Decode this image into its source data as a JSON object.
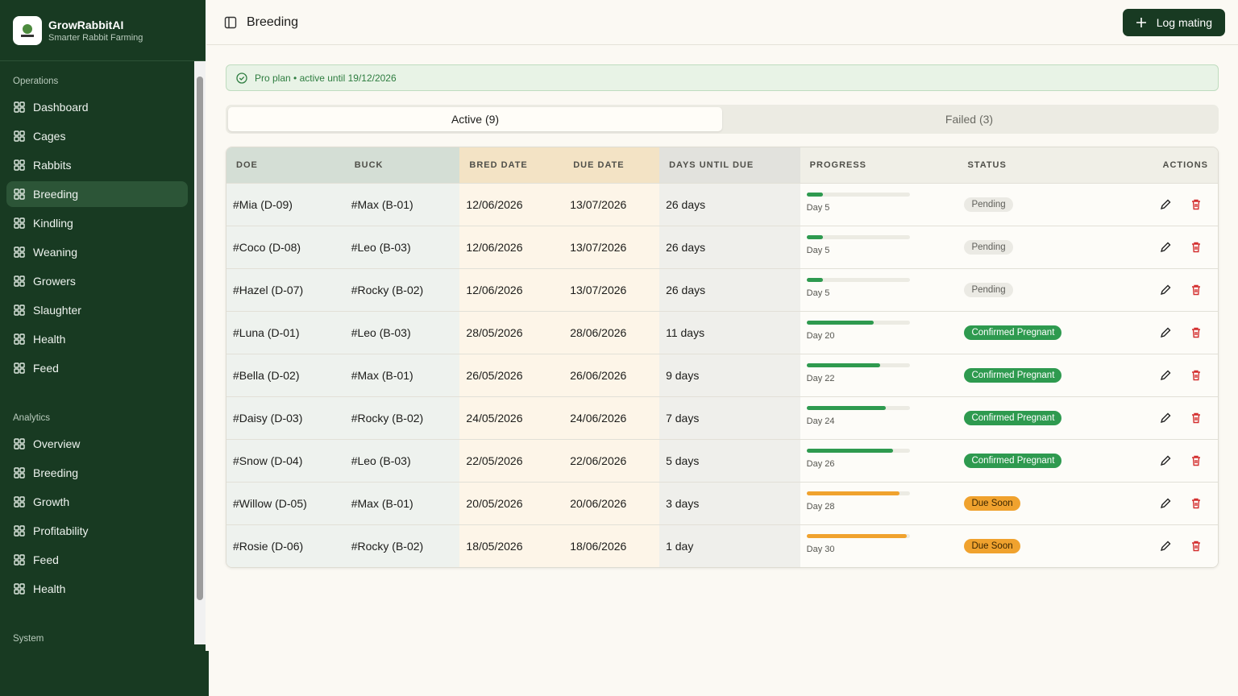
{
  "sidebar": {
    "brand": {
      "name": "GrowRabbitAI",
      "tagline": "Smarter Rabbit Farming"
    },
    "sections": [
      {
        "title": "Operations",
        "items": [
          {
            "label": "Dashboard"
          },
          {
            "label": "Cages"
          },
          {
            "label": "Rabbits"
          },
          {
            "label": "Breeding",
            "active": true
          },
          {
            "label": "Kindling"
          },
          {
            "label": "Weaning"
          },
          {
            "label": "Growers"
          },
          {
            "label": "Slaughter"
          },
          {
            "label": "Health"
          },
          {
            "label": "Feed"
          }
        ]
      },
      {
        "title": "Analytics",
        "items": [
          {
            "label": "Overview"
          },
          {
            "label": "Breeding"
          },
          {
            "label": "Growth"
          },
          {
            "label": "Profitability"
          },
          {
            "label": "Feed"
          },
          {
            "label": "Health"
          }
        ]
      },
      {
        "title": "System",
        "items": []
      }
    ]
  },
  "header": {
    "title": "Breeding",
    "button": "Log mating"
  },
  "plan_banner": "Pro plan • active until 19/12/2026",
  "tabs": [
    {
      "label": "Active (9)",
      "active": true
    },
    {
      "label": "Failed (3)"
    }
  ],
  "table": {
    "columns": [
      "DOE",
      "BUCK",
      "BRED DATE",
      "DUE DATE",
      "DAYS UNTIL DUE",
      "PROGRESS",
      "STATUS",
      "ACTIONS"
    ],
    "rows": [
      {
        "doe": "#Mia (D-09)",
        "buck": "#Max (B-01)",
        "bred": "12/06/2026",
        "due": "13/07/2026",
        "days_until": "26 days",
        "progress": 16,
        "progress_label": "Day 5",
        "status": "Pending",
        "bar_color": "#2e9a4f",
        "badge_bg": "#ebeae4",
        "badge_fg": "#5f5f5a"
      },
      {
        "doe": "#Coco (D-08)",
        "buck": "#Leo (B-03)",
        "bred": "12/06/2026",
        "due": "13/07/2026",
        "days_until": "26 days",
        "progress": 16,
        "progress_label": "Day 5",
        "status": "Pending",
        "bar_color": "#2e9a4f",
        "badge_bg": "#ebeae4",
        "badge_fg": "#5f5f5a"
      },
      {
        "doe": "#Hazel (D-07)",
        "buck": "#Rocky (B-02)",
        "bred": "12/06/2026",
        "due": "13/07/2026",
        "days_until": "26 days",
        "progress": 16,
        "progress_label": "Day 5",
        "status": "Pending",
        "bar_color": "#2e9a4f",
        "badge_bg": "#ebeae4",
        "badge_fg": "#5f5f5a"
      },
      {
        "doe": "#Luna (D-01)",
        "buck": "#Leo (B-03)",
        "bred": "28/05/2026",
        "due": "28/06/2026",
        "days_until": "11 days",
        "progress": 65,
        "progress_label": "Day 20",
        "status": "Confirmed Pregnant",
        "bar_color": "#2e9a4f",
        "badge_bg": "#2e9a4f",
        "badge_fg": "#ffffff"
      },
      {
        "doe": "#Bella (D-02)",
        "buck": "#Max (B-01)",
        "bred": "26/05/2026",
        "due": "26/06/2026",
        "days_until": "9 days",
        "progress": 71,
        "progress_label": "Day 22",
        "status": "Confirmed Pregnant",
        "bar_color": "#2e9a4f",
        "badge_bg": "#2e9a4f",
        "badge_fg": "#ffffff"
      },
      {
        "doe": "#Daisy (D-03)",
        "buck": "#Rocky (B-02)",
        "bred": "24/05/2026",
        "due": "24/06/2026",
        "days_until": "7 days",
        "progress": 77,
        "progress_label": "Day 24",
        "status": "Confirmed Pregnant",
        "bar_color": "#2e9a4f",
        "badge_bg": "#2e9a4f",
        "badge_fg": "#ffffff"
      },
      {
        "doe": "#Snow (D-04)",
        "buck": "#Leo (B-03)",
        "bred": "22/05/2026",
        "due": "22/06/2026",
        "days_until": "5 days",
        "progress": 84,
        "progress_label": "Day 26",
        "status": "Confirmed Pregnant",
        "bar_color": "#2e9a4f",
        "badge_bg": "#2e9a4f",
        "badge_fg": "#ffffff"
      },
      {
        "doe": "#Willow (D-05)",
        "buck": "#Max (B-01)",
        "bred": "20/05/2026",
        "due": "20/06/2026",
        "days_until": "3 days",
        "progress": 90,
        "progress_label": "Day 28",
        "status": "Due Soon",
        "bar_color": "#f0a22e",
        "badge_bg": "#f0a22e",
        "badge_fg": "#3a2500"
      },
      {
        "doe": "#Rosie (D-06)",
        "buck": "#Rocky (B-02)",
        "bred": "18/05/2026",
        "due": "18/06/2026",
        "days_until": "1 day",
        "progress": 97,
        "progress_label": "Day 30",
        "status": "Due Soon",
        "bar_color": "#f0a22e",
        "badge_bg": "#f0a22e",
        "badge_fg": "#3a2500"
      }
    ]
  }
}
